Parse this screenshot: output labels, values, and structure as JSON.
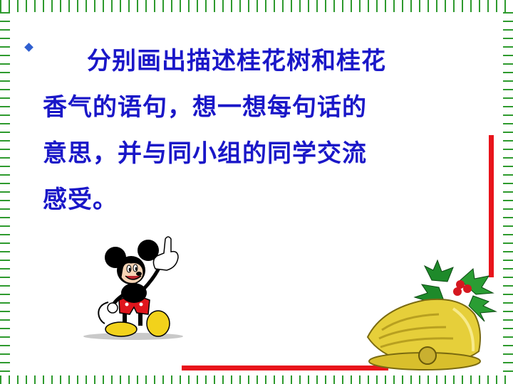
{
  "slide": {
    "lines": [
      "分别画出描述桂花树和桂花",
      "香气的语句，想一想每句话的",
      "意思，并与同小组的同学交流",
      "感受。"
    ]
  },
  "icons": {
    "bullet": "diamond-bullet-icon",
    "mickey": "mickey-mouse-pointing-illustration",
    "bell": "christmas-bell-with-holly-illustration"
  },
  "colors": {
    "text": "#1a17c8",
    "frame_green": "#2e9a2e",
    "accent_red": "#e8141b",
    "bell_gold": "#e6cf3a"
  }
}
